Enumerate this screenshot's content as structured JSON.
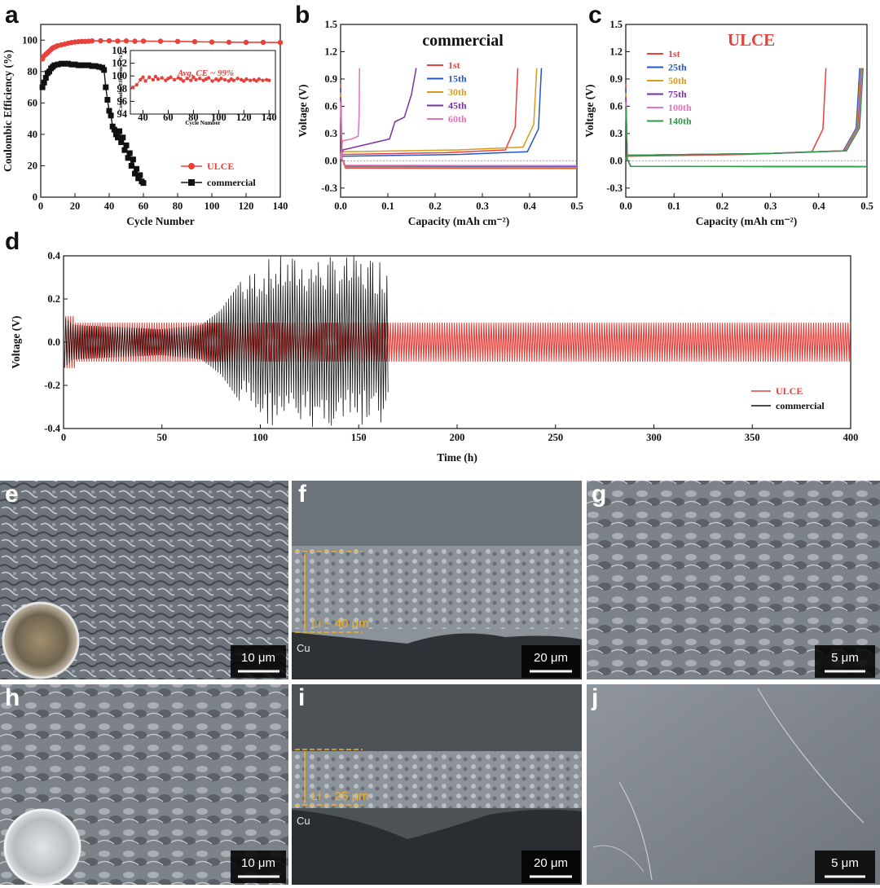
{
  "chart_data": [
    {
      "panel": "a",
      "type": "scatter",
      "xlabel": "Cycle Number",
      "ylabel": "Coulombic Efficiency (%)",
      "xlim": [
        0,
        140
      ],
      "ylim": [
        0,
        110
      ],
      "xticks": [
        0,
        20,
        40,
        60,
        80,
        100,
        120,
        140
      ],
      "yticks": [
        0,
        20,
        40,
        60,
        80,
        100
      ],
      "legend": {
        "placement": "bottom-right",
        "entries": [
          "ULCE",
          "commercial"
        ]
      },
      "series": [
        {
          "name": "ULCE",
          "color": "#e8403a",
          "marker": "circle",
          "x": [
            1,
            2,
            3,
            4,
            5,
            6,
            7,
            8,
            9,
            10,
            12,
            14,
            16,
            18,
            20,
            22,
            24,
            26,
            28,
            30,
            35,
            40,
            45,
            50,
            55,
            60,
            70,
            80,
            90,
            100,
            110,
            120,
            130,
            140
          ],
          "y": [
            88,
            90,
            91,
            92,
            93,
            94,
            95,
            95.5,
            96,
            96.5,
            97,
            97.5,
            98,
            98.5,
            98.8,
            99,
            99.2,
            99.2,
            99.3,
            99.5,
            99.6,
            99.6,
            99.4,
            99.5,
            99.3,
            99.4,
            99.3,
            99.2,
            99.0,
            98.8,
            98.7,
            98.6,
            98.6,
            98.5
          ]
        },
        {
          "name": "commercial",
          "color": "#111111",
          "marker": "square",
          "x": [
            1,
            2,
            3,
            4,
            5,
            6,
            7,
            8,
            10,
            12,
            14,
            16,
            18,
            20,
            22,
            24,
            26,
            28,
            30,
            32,
            34,
            36,
            37,
            38,
            39,
            40,
            41,
            42,
            43,
            44,
            45,
            46,
            47,
            48,
            49,
            50,
            51,
            52,
            53,
            54,
            55,
            56,
            57,
            58,
            59,
            60
          ],
          "y": [
            70,
            73,
            76,
            79,
            80,
            82,
            83,
            84,
            84.5,
            85,
            85,
            85,
            84.5,
            84.5,
            84,
            84,
            84,
            84,
            83.5,
            83.5,
            83,
            82.5,
            81,
            70,
            62,
            55,
            52,
            45,
            43,
            40,
            38,
            42,
            35,
            38,
            30,
            33,
            25,
            28,
            20,
            24,
            15,
            18,
            12,
            14,
            10,
            9
          ]
        }
      ],
      "inset": {
        "xlabel": "Cycle Number",
        "ylabel": "Coulombic Efficiency (%)",
        "xlim": [
          30,
          145
        ],
        "ylim": [
          94,
          104
        ],
        "xticks": [
          40,
          60,
          80,
          100,
          120,
          140
        ],
        "yticks": [
          94,
          96,
          98,
          100,
          102,
          104
        ],
        "annotation": "Avg. CE ~ 99%",
        "x": [
          32,
          35,
          38,
          40,
          42,
          45,
          48,
          50,
          52,
          55,
          58,
          60,
          62,
          65,
          68,
          70,
          72,
          75,
          78,
          80,
          82,
          85,
          88,
          90,
          92,
          95,
          98,
          100,
          102,
          105,
          108,
          110,
          112,
          115,
          118,
          120,
          122,
          125,
          128,
          130,
          132,
          135,
          138,
          140
        ],
        "y": [
          98.2,
          98.6,
          99.4,
          99.8,
          99.2,
          99.8,
          99.4,
          99.9,
          99.5,
          99.7,
          99.3,
          99.6,
          99.8,
          99.4,
          99.7,
          99.5,
          99.2,
          99.6,
          99.3,
          99.8,
          99.4,
          99.6,
          99.3,
          99.5,
          99.7,
          99.2,
          99.5,
          99.3,
          99.6,
          99.4,
          99.2,
          99.5,
          99.3,
          99.6,
          99.4,
          99.2,
          99.5,
          99.3,
          99.4,
          99.2,
          99.5,
          99.3,
          99.4,
          99.3
        ]
      }
    },
    {
      "panel": "b",
      "type": "line",
      "title": "commercial",
      "xlabel": "Capacity (mAh cm⁻²)",
      "ylabel": "Voltage (V)",
      "xlim": [
        0,
        0.5
      ],
      "ylim": [
        -0.4,
        1.5
      ],
      "xticks": [
        0.0,
        0.1,
        0.2,
        0.3,
        0.4,
        0.5
      ],
      "yticks": [
        -0.3,
        0.0,
        0.3,
        0.6,
        0.9,
        1.2,
        1.5
      ],
      "legend": {
        "placement": "top-center",
        "entries": [
          "1st",
          "15th",
          "30th",
          "45th",
          "60th"
        ]
      },
      "series": [
        {
          "name": "1st",
          "color": "#e8403a",
          "capacity": 0.375,
          "plateau": 0.07,
          "discharge": -0.08
        },
        {
          "name": "15th",
          "color": "#2457c5",
          "capacity": 0.425,
          "plateau": 0.05,
          "discharge": -0.06
        },
        {
          "name": "30th",
          "color": "#d99a1e",
          "capacity": 0.415,
          "plateau": 0.1,
          "discharge": -0.07
        },
        {
          "name": "45th",
          "color": "#7a2fa8",
          "capacity": 0.16,
          "plateau": 0.12,
          "discharge": -0.05,
          "step_at": 0.115,
          "step_to": 0.48
        },
        {
          "name": "60th",
          "color": "#e86fb9",
          "capacity": 0.04,
          "plateau": 0.22,
          "discharge": -0.05
        }
      ]
    },
    {
      "panel": "c",
      "type": "line",
      "title": "ULCE",
      "xlabel": "Capacity (mAh cm⁻²)",
      "ylabel": "Voltage (V)",
      "xlim": [
        0,
        0.5
      ],
      "ylim": [
        -0.4,
        1.5
      ],
      "xticks": [
        0.0,
        0.1,
        0.2,
        0.3,
        0.4,
        0.5
      ],
      "yticks": [
        -0.3,
        0.0,
        0.3,
        0.6,
        0.9,
        1.2,
        1.5
      ],
      "legend": {
        "placement": "top-left",
        "entries": [
          "1st",
          "25th",
          "50th",
          "75th",
          "100th",
          "140th"
        ]
      },
      "series": [
        {
          "name": "1st",
          "color": "#e8403a",
          "capacity": 0.415,
          "plateau": 0.05,
          "discharge": -0.06
        },
        {
          "name": "25th",
          "color": "#2457c5",
          "capacity": 0.485,
          "plateau": 0.06,
          "discharge": -0.06
        },
        {
          "name": "50th",
          "color": "#d99a1e",
          "capacity": 0.487,
          "plateau": 0.06,
          "discharge": -0.06
        },
        {
          "name": "75th",
          "color": "#7a2fa8",
          "capacity": 0.489,
          "plateau": 0.06,
          "discharge": -0.06
        },
        {
          "name": "100th",
          "color": "#e86fb9",
          "capacity": 0.49,
          "plateau": 0.06,
          "discharge": -0.06
        },
        {
          "name": "140th",
          "color": "#2e9a4a",
          "capacity": 0.492,
          "plateau": 0.06,
          "discharge": -0.06
        }
      ]
    },
    {
      "panel": "d",
      "type": "line",
      "xlabel": "Time (h)",
      "ylabel": "Voltage (V)",
      "xlim": [
        0,
        400
      ],
      "ylim": [
        -0.4,
        0.4
      ],
      "xticks": [
        0,
        50,
        100,
        150,
        200,
        250,
        300,
        350,
        400
      ],
      "yticks": [
        -0.4,
        -0.2,
        0.0,
        0.2,
        0.4
      ],
      "legend": {
        "placement": "bottom-right",
        "entries": [
          "ULCE",
          "commercial"
        ]
      },
      "series": [
        {
          "name": "ULCE",
          "color": "#e8403a",
          "t_end": 400,
          "amplitude": 0.09
        },
        {
          "name": "commercial",
          "color": "#111111",
          "t_end": 165,
          "envelope_t": [
            0,
            5,
            50,
            70,
            80,
            90,
            100,
            110,
            130,
            150,
            165
          ],
          "envelope_v": [
            0.12,
            0.08,
            0.06,
            0.08,
            0.15,
            0.28,
            0.38,
            0.4,
            0.4,
            0.4,
            0.4
          ]
        }
      ]
    }
  ],
  "sem_panels": [
    {
      "letter": "e",
      "scale": "10 μm",
      "has_photo_inset": true
    },
    {
      "letter": "f",
      "scale": "20 μm",
      "thickness": "Li ~ 40 μm",
      "substrate": "Cu"
    },
    {
      "letter": "g",
      "scale": "5 μm"
    },
    {
      "letter": "h",
      "scale": "10 μm",
      "has_photo_inset": true
    },
    {
      "letter": "i",
      "scale": "20 μm",
      "thickness": "Li ~ 25 μm",
      "substrate": "Cu"
    },
    {
      "letter": "j",
      "scale": "5 μm"
    }
  ]
}
